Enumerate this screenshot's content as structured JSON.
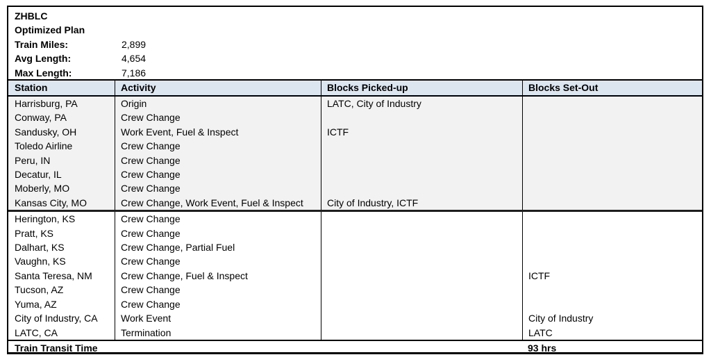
{
  "meta": {
    "train_id": "ZHBLC",
    "plan_label": "Optimized Plan",
    "stats": [
      {
        "label": "Train Miles:",
        "value": "2,899"
      },
      {
        "label": "Avg Length:",
        "value": "4,654"
      },
      {
        "label": "Max Length:",
        "value": "7,186"
      }
    ]
  },
  "table": {
    "columns": [
      "Station",
      "Activity",
      "Blocks Picked-up",
      "Blocks Set-Out"
    ],
    "groups": [
      {
        "rows": [
          {
            "station": "Harrisburg, PA",
            "activity": "Origin",
            "picked_up": "LATC, City of Industry",
            "set_out": ""
          },
          {
            "station": "Conway, PA",
            "activity": "Crew Change",
            "picked_up": "",
            "set_out": ""
          },
          {
            "station": "Sandusky, OH",
            "activity": "Work Event, Fuel & Inspect",
            "picked_up": "ICTF",
            "set_out": ""
          },
          {
            "station": "Toledo Airline",
            "activity": "Crew Change",
            "picked_up": "",
            "set_out": ""
          },
          {
            "station": "Peru, IN",
            "activity": "Crew Change",
            "picked_up": "",
            "set_out": ""
          },
          {
            "station": "Decatur, IL",
            "activity": "Crew Change",
            "picked_up": "",
            "set_out": ""
          },
          {
            "station": "Moberly, MO",
            "activity": "Crew Change",
            "picked_up": "",
            "set_out": ""
          },
          {
            "station": "Kansas City, MO",
            "activity": "Crew Change, Work Event, Fuel & Inspect",
            "picked_up": "City of Industry, ICTF",
            "set_out": ""
          }
        ]
      },
      {
        "rows": [
          {
            "station": "Herington, KS",
            "activity": "Crew Change",
            "picked_up": "",
            "set_out": ""
          },
          {
            "station": "Pratt, KS",
            "activity": "Crew Change",
            "picked_up": "",
            "set_out": ""
          },
          {
            "station": "Dalhart, KS",
            "activity": "Crew Change, Partial Fuel",
            "picked_up": "",
            "set_out": ""
          },
          {
            "station": "Vaughn, KS",
            "activity": "Crew Change",
            "picked_up": "",
            "set_out": ""
          },
          {
            "station": "Santa Teresa, NM",
            "activity": "Crew Change, Fuel & Inspect",
            "picked_up": "",
            "set_out": "ICTF"
          },
          {
            "station": "Tucson, AZ",
            "activity": "Crew Change",
            "picked_up": "",
            "set_out": ""
          },
          {
            "station": "Yuma, AZ",
            "activity": "Crew Change",
            "picked_up": "",
            "set_out": ""
          },
          {
            "station": "City of Industry, CA",
            "activity": "Work Event",
            "picked_up": "",
            "set_out": "City of Industry"
          },
          {
            "station": "LATC, CA",
            "activity": "Termination",
            "picked_up": "",
            "set_out": "LATC"
          }
        ]
      }
    ],
    "footer": {
      "label": "Train Transit Time",
      "value": "93 hrs"
    }
  },
  "colors": {
    "header_bg": "#dce6f1",
    "group1_bg": "#f2f2f2",
    "border": "#000000",
    "text": "#000000"
  }
}
